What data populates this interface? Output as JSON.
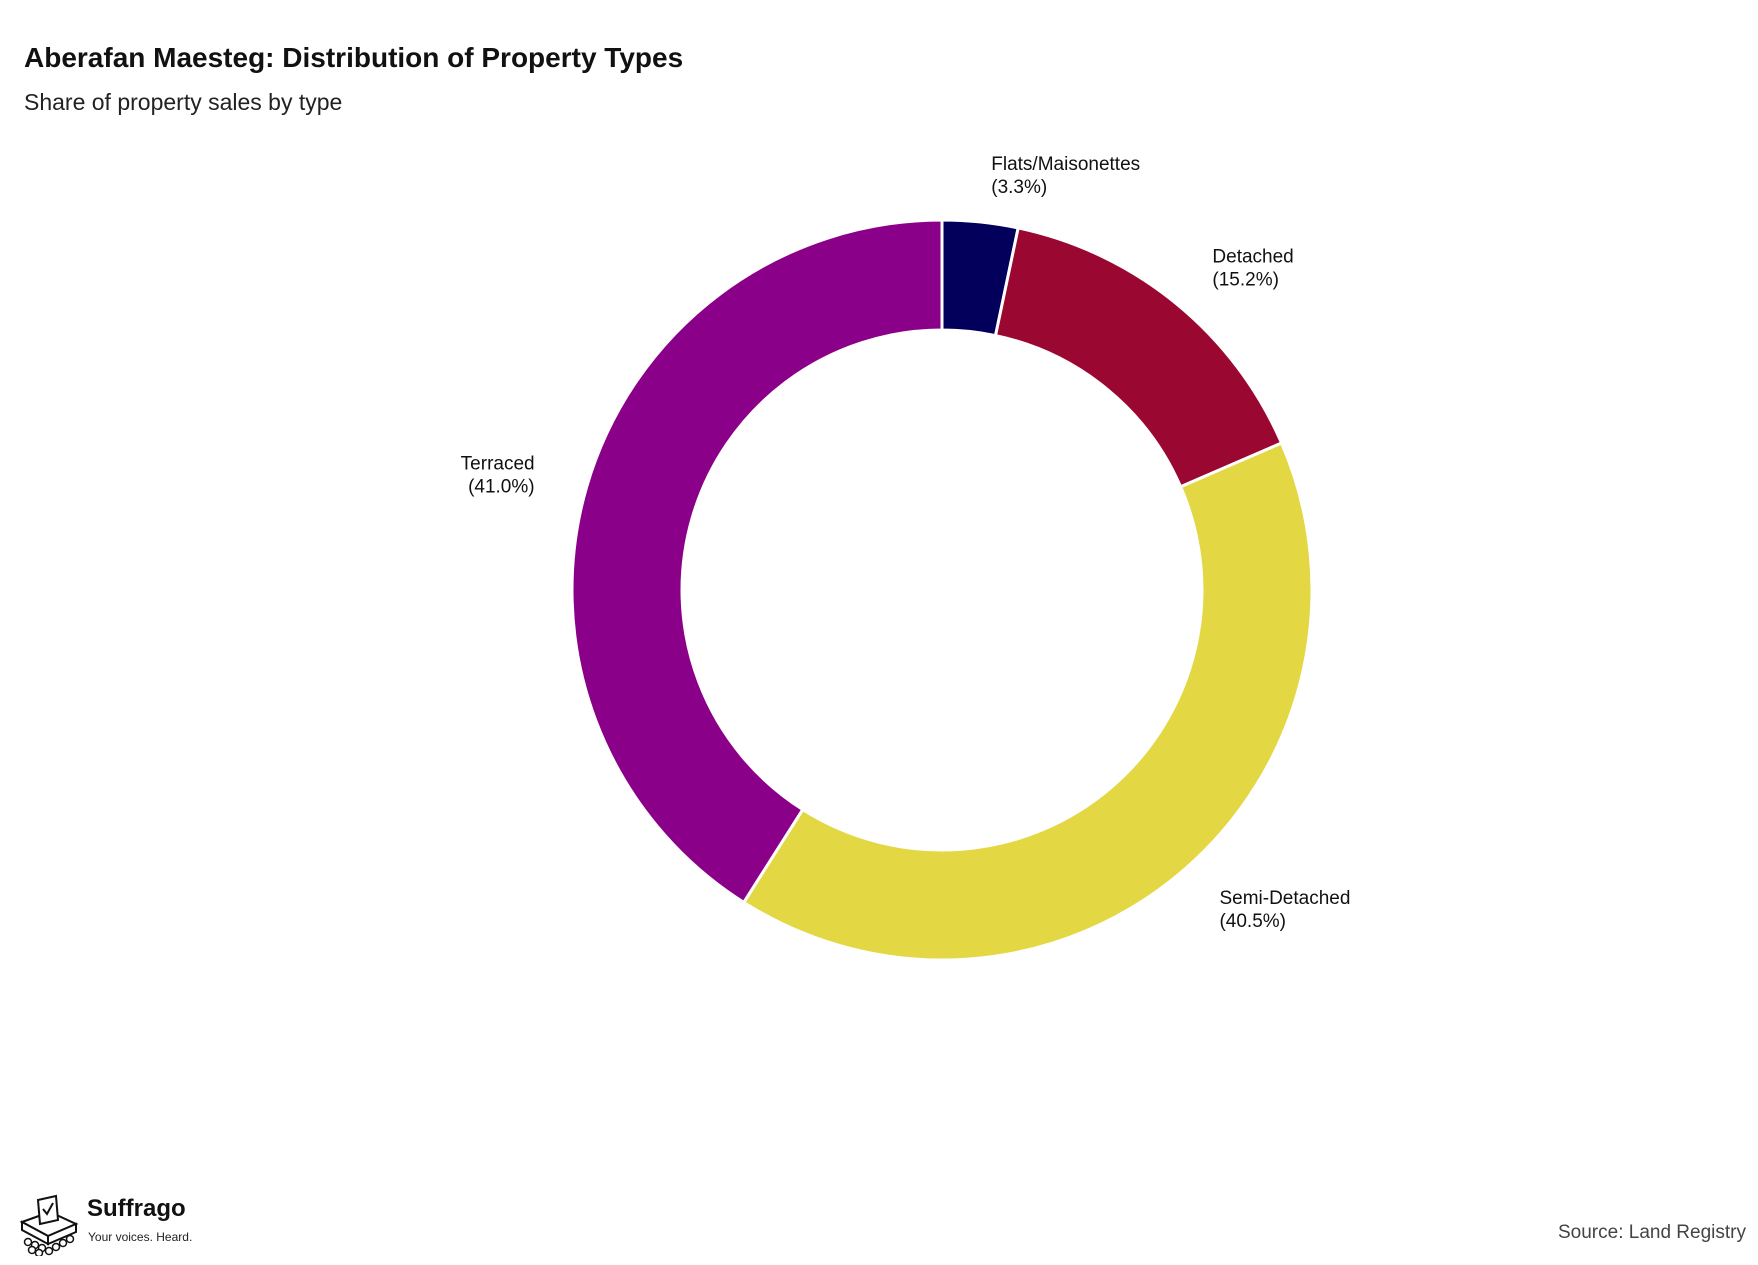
{
  "title": "Aberafan Maesteg: Distribution of Property Types",
  "subtitle": "Share of property sales by type",
  "source": "Source: Land Registry",
  "brand": {
    "name": "Suffrago",
    "tagline": "Your voices. Heard."
  },
  "chart_data": {
    "type": "pie",
    "style": "donut",
    "start": "top",
    "direction": "clockwise",
    "slices": [
      {
        "label": "Flats/Maisonettes",
        "value": 3.3,
        "display": "(3.3%)",
        "color": "#03005b"
      },
      {
        "label": "Detached",
        "value": 15.2,
        "display": "(15.2%)",
        "color": "#9a0731"
      },
      {
        "label": "Semi-Detached",
        "value": 40.5,
        "display": "(40.5%)",
        "color": "#e3d843"
      },
      {
        "label": "Terraced",
        "value": 41.0,
        "display": "(41.0%)",
        "color": "#8b0089"
      }
    ]
  }
}
